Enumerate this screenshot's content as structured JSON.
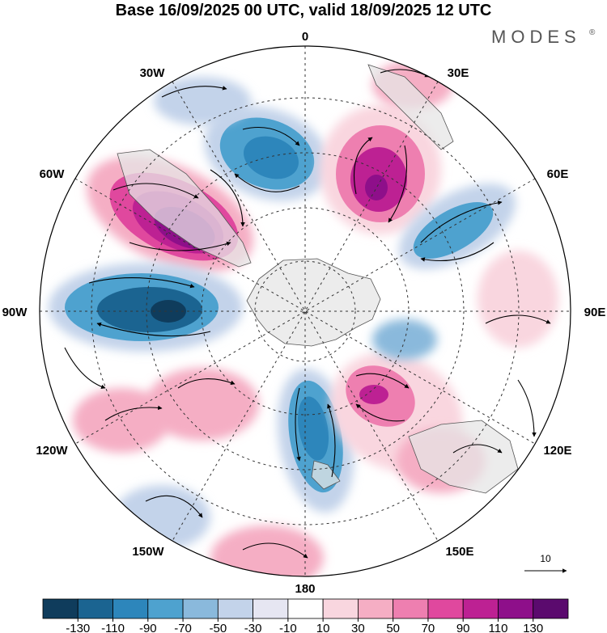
{
  "header": {
    "title": "Base 16/09/2025 00 UTC, valid 18/09/2025 12 UTC",
    "brand": "MODES",
    "brand_mark": "®"
  },
  "map": {
    "projection": "south-polar-stereographic",
    "longitude_labels": {
      "top": "0",
      "upper_left": "30W",
      "upper_right": "30E",
      "left_upper": "60W",
      "right_upper": "60E",
      "left": "90W",
      "right": "90E",
      "left_lower": "120W",
      "right_lower": "120E",
      "lower_left": "150W",
      "lower_right": "150E",
      "bottom": "180"
    },
    "vector_reference": {
      "label": "10"
    }
  },
  "colorbar": {
    "ticks": [
      "-130",
      "-110",
      "-90",
      "-70",
      "-50",
      "-30",
      "-10",
      "10",
      "30",
      "50",
      "70",
      "90",
      "110",
      "130"
    ],
    "colors": [
      "#0f3c5c",
      "#1b6491",
      "#2d86bb",
      "#4ea2cf",
      "#8ab9dc",
      "#c3d3ea",
      "#e6e6f2",
      "#ffffff",
      "#f9d6df",
      "#f5aec4",
      "#ee7fb0",
      "#e0489e",
      "#bd2193",
      "#8e0f8a",
      "#5b0a6e"
    ]
  }
}
